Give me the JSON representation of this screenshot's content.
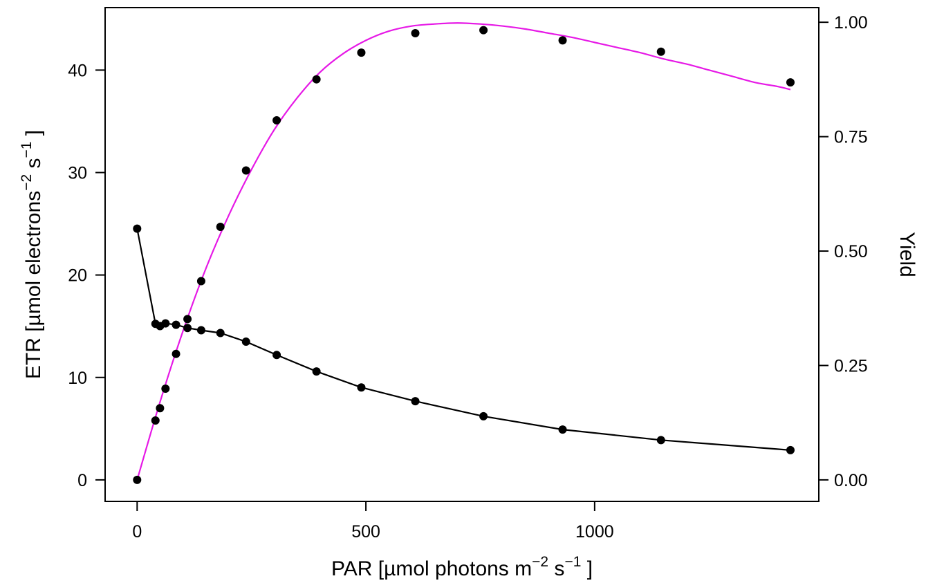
{
  "chart_data": {
    "type": "scatter",
    "x_axis": {
      "label_main": "PAR [",
      "label_mu": "µ",
      "label_mid": "mol photons m",
      "label_sup1": "−2",
      "label_s": " s",
      "label_sup2": "−1",
      "label_end": " ]",
      "range": [
        -70,
        1490
      ],
      "ticks": [
        0,
        500,
        1000
      ],
      "tick_labels": [
        "0",
        "500",
        "1000"
      ]
    },
    "y_left": {
      "label_main": "ETR [",
      "label_mu": "µ",
      "label_mid": "mol electrons",
      "label_sup1": "−2",
      "label_s": " s",
      "label_sup2": "−1",
      "label_end": " ]",
      "range": [
        -2.1,
        46.1
      ],
      "ticks": [
        0,
        10,
        20,
        30,
        40
      ],
      "tick_labels": [
        "0",
        "10",
        "20",
        "30",
        "40"
      ]
    },
    "y_right": {
      "label": "Yield",
      "range": [
        -0.047,
        1.032
      ],
      "ticks": [
        0.0,
        0.25,
        0.5,
        0.75,
        1.0
      ],
      "tick_labels": [
        "0.00",
        "0.25",
        "0.50",
        "0.75",
        "1.00"
      ]
    },
    "colors": {
      "etr_fit": "#E619E6",
      "points": "#000000",
      "yield_line": "#000000"
    },
    "series": [
      {
        "axis": "left",
        "kind": "points",
        "x": [
          0,
          40,
          50,
          62,
          85,
          110,
          140,
          182,
          238,
          305,
          392,
          490,
          608,
          757,
          930,
          1145,
          1428
        ],
        "y": [
          0,
          5.8,
          7.0,
          8.9,
          12.3,
          15.7,
          19.4,
          24.7,
          30.2,
          35.1,
          39.1,
          41.7,
          43.6,
          43.9,
          42.9,
          41.8,
          38.8
        ]
      },
      {
        "axis": "left",
        "kind": "fit",
        "x": [
          0,
          50,
          100,
          150,
          200,
          250,
          300,
          350,
          400,
          450,
          500,
          550,
          600,
          650,
          700,
          750,
          800,
          850,
          900,
          950,
          1000,
          1050,
          1100,
          1150,
          1200,
          1250,
          1300,
          1350,
          1400,
          1428
        ],
        "y": [
          0,
          7.6,
          14.5,
          20.6,
          25.8,
          30.3,
          34.2,
          37.3,
          39.8,
          41.6,
          42.9,
          43.8,
          44.3,
          44.5,
          44.6,
          44.5,
          44.3,
          44.0,
          43.6,
          43.2,
          42.7,
          42.2,
          41.7,
          41.1,
          40.6,
          40.0,
          39.4,
          38.8,
          38.4,
          38.1
        ]
      },
      {
        "axis": "right",
        "kind": "points+line",
        "x": [
          0,
          40,
          50,
          62,
          85,
          110,
          140,
          182,
          238,
          305,
          392,
          490,
          608,
          757,
          930,
          1145,
          1428
        ],
        "y": [
          0.549,
          0.341,
          0.336,
          0.342,
          0.339,
          0.332,
          0.327,
          0.321,
          0.302,
          0.273,
          0.237,
          0.202,
          0.172,
          0.139,
          0.11,
          0.087,
          0.065
        ]
      }
    ]
  }
}
